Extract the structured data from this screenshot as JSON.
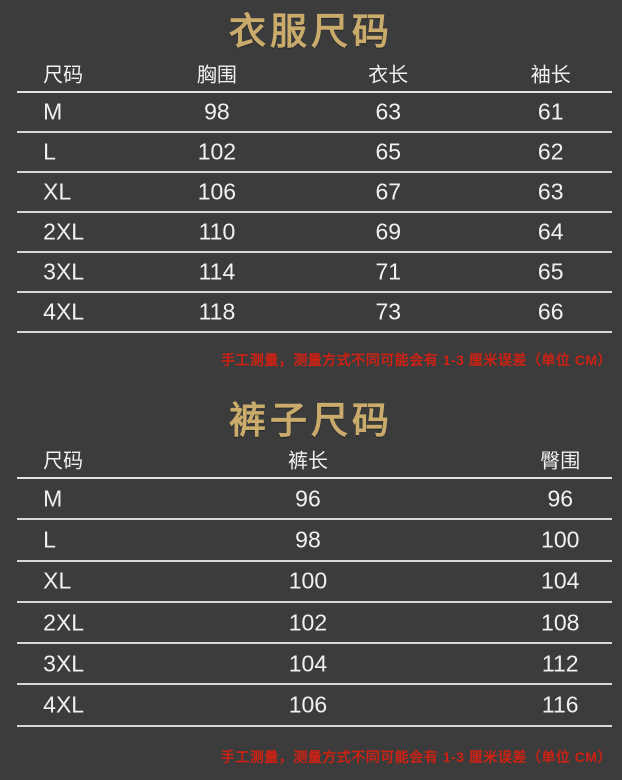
{
  "colors": {
    "background": "#3c3c3c",
    "title_gold": "#c9ab6c",
    "text_white": "#f1f1f1",
    "divider": "#d8d8d8",
    "note_red": "#cc2114"
  },
  "tables": [
    {
      "title": "衣服尺码",
      "columns": [
        "尺码",
        "胸围",
        "衣长",
        "袖长"
      ],
      "rows": [
        [
          "M",
          "98",
          "63",
          "61"
        ],
        [
          "L",
          "102",
          "65",
          "62"
        ],
        [
          "XL",
          "106",
          "67",
          "63"
        ],
        [
          "2XL",
          "110",
          "69",
          "64"
        ],
        [
          "3XL",
          "114",
          "71",
          "65"
        ],
        [
          "4XL",
          "118",
          "73",
          "66"
        ]
      ],
      "note": "手工测量，测量方式不同可能会有 1-3 厘米误差（单位 CM）"
    },
    {
      "title": "裤子尺码",
      "columns": [
        "尺码",
        "裤长",
        "臀围"
      ],
      "rows": [
        [
          "M",
          "96",
          "96"
        ],
        [
          "L",
          "98",
          "100"
        ],
        [
          "XL",
          "100",
          "104"
        ],
        [
          "2XL",
          "102",
          "108"
        ],
        [
          "3XL",
          "104",
          "112"
        ],
        [
          "4XL",
          "106",
          "116"
        ]
      ],
      "note": "手工测量，测量方式不同可能会有 1-3 厘米误差（单位 CM）"
    }
  ]
}
